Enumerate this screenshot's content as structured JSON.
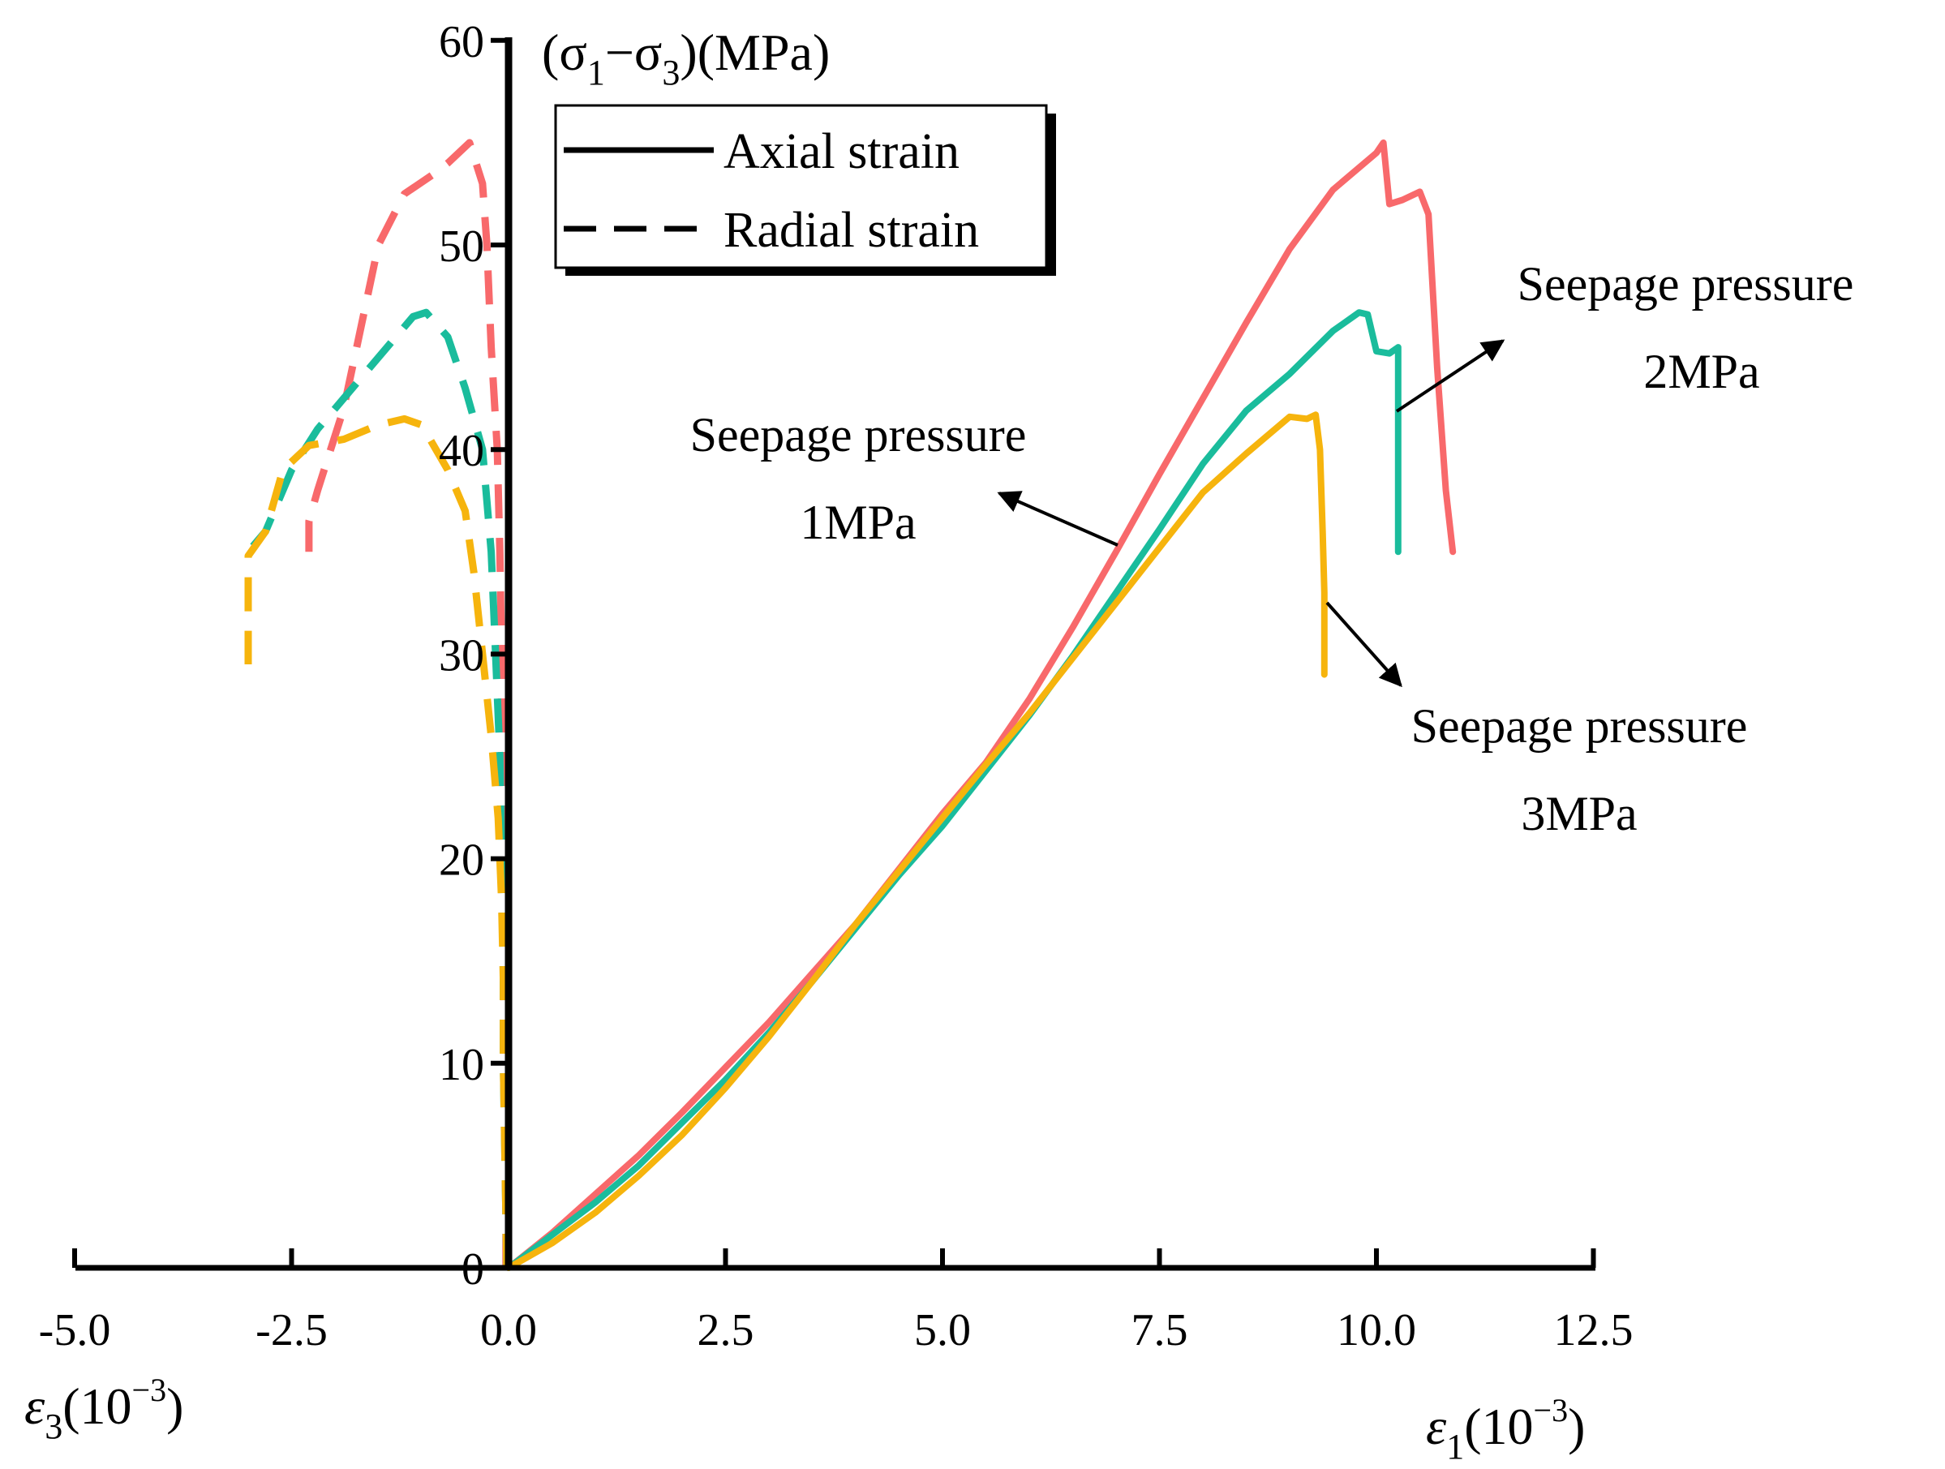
{
  "chart_data": {
    "type": "line",
    "y_axis": {
      "title_main": "(σ",
      "title_sub1": "1",
      "title_mid": "−σ",
      "title_sub2": "3",
      "title_end": ")(MPa)",
      "ylim": [
        0,
        60
      ],
      "ticks": [
        "0",
        "10",
        "20",
        "30",
        "40",
        "50",
        "60"
      ]
    },
    "x_axis": {
      "xlim": [
        -5,
        12.5
      ],
      "ticks": [
        {
          "value": -5.0,
          "label": "-5.0"
        },
        {
          "value": -2.5,
          "label": "-2.5"
        },
        {
          "value": 0.0,
          "label": "0.0"
        },
        {
          "value": 2.5,
          "label": "2.5"
        },
        {
          "value": 5.0,
          "label": "5.0"
        },
        {
          "value": 7.5,
          "label": "7.5"
        },
        {
          "value": 10.0,
          "label": "10.0"
        },
        {
          "value": 12.5,
          "label": "12.5"
        }
      ],
      "left_label_symbol": "ε",
      "left_label_sub": "3",
      "left_label_unit": "(10",
      "left_label_exp": "−3",
      "left_label_close": ")",
      "right_label_symbol": "ε",
      "right_label_sub": "1",
      "right_label_unit": "(10",
      "right_label_exp": "−3",
      "right_label_close": ")"
    },
    "legend": {
      "placement": "top-left",
      "entries": [
        {
          "label": "Axial strain",
          "style": "solid"
        },
        {
          "label": "Radial strain",
          "style": "dashed"
        }
      ]
    },
    "annotations": [
      {
        "line1": "Seepage pressure",
        "line2": "1MPa"
      },
      {
        "line1": "Seepage pressure",
        "line2": "2MPa"
      },
      {
        "line1": "Seepage pressure",
        "line2": "3MPa"
      }
    ],
    "series": [
      {
        "color": "#F8696B",
        "axial": [
          [
            0,
            0
          ],
          [
            0.5,
            1.7
          ],
          [
            1,
            3.6
          ],
          [
            1.5,
            5.5
          ],
          [
            2,
            7.6
          ],
          [
            2.5,
            9.8
          ],
          [
            3,
            12
          ],
          [
            3.5,
            14.4
          ],
          [
            4,
            16.8
          ],
          [
            4.5,
            19.5
          ],
          [
            5,
            22.2
          ],
          [
            5.5,
            24.7
          ],
          [
            6,
            27.8
          ],
          [
            6.5,
            31.3
          ],
          [
            7,
            35
          ],
          [
            7.5,
            38.8
          ],
          [
            8,
            42.5
          ],
          [
            8.5,
            46.2
          ],
          [
            9,
            49.8
          ],
          [
            9.5,
            52.7
          ],
          [
            10,
            54.5
          ],
          [
            10.08,
            55.0
          ],
          [
            10.15,
            52
          ],
          [
            10.3,
            52.2
          ],
          [
            10.5,
            52.6
          ],
          [
            10.6,
            51.5
          ],
          [
            10.7,
            44
          ],
          [
            10.8,
            38
          ],
          [
            10.88,
            35
          ]
        ],
        "radial": [
          [
            -0.03,
            0
          ],
          [
            -0.03,
            5
          ],
          [
            -0.04,
            10
          ],
          [
            -0.06,
            15
          ],
          [
            -0.06,
            20
          ],
          [
            -0.08,
            25
          ],
          [
            -0.08,
            30
          ],
          [
            -0.1,
            35
          ],
          [
            -0.13,
            40
          ],
          [
            -0.2,
            45
          ],
          [
            -0.25,
            50
          ],
          [
            -0.3,
            53
          ],
          [
            -0.45,
            55
          ],
          [
            -0.7,
            54
          ],
          [
            -0.85,
            53.5
          ],
          [
            -1.2,
            52.5
          ],
          [
            -1.5,
            50
          ],
          [
            -1.75,
            45
          ],
          [
            -1.9,
            42
          ],
          [
            -2.2,
            38
          ],
          [
            -2.3,
            36.5
          ],
          [
            -2.3,
            35
          ]
        ]
      },
      {
        "color": "#1ABC9C",
        "axial": [
          [
            0,
            0
          ],
          [
            0.5,
            1.6
          ],
          [
            1,
            3.2
          ],
          [
            1.5,
            5
          ],
          [
            2,
            7.1
          ],
          [
            2.5,
            9.2
          ],
          [
            3,
            11.5
          ],
          [
            3.5,
            14
          ],
          [
            4,
            16.6
          ],
          [
            4.5,
            19.2
          ],
          [
            5,
            21.6
          ],
          [
            5.5,
            24.3
          ],
          [
            6,
            27
          ],
          [
            6.5,
            29.9
          ],
          [
            7,
            33
          ],
          [
            7.5,
            36.1
          ],
          [
            8,
            39.3
          ],
          [
            8.5,
            41.9
          ],
          [
            9,
            43.7
          ],
          [
            9.5,
            45.8
          ],
          [
            9.8,
            46.7
          ],
          [
            9.9,
            46.6
          ],
          [
            10.0,
            44.8
          ],
          [
            10.15,
            44.7
          ],
          [
            10.25,
            45
          ],
          [
            10.25,
            40
          ],
          [
            10.25,
            35
          ]
        ],
        "radial": [
          [
            -0.02,
            0
          ],
          [
            -0.04,
            5
          ],
          [
            -0.06,
            10
          ],
          [
            -0.06,
            15
          ],
          [
            -0.08,
            20
          ],
          [
            -0.1,
            25
          ],
          [
            -0.15,
            30
          ],
          [
            -0.2,
            35
          ],
          [
            -0.3,
            40
          ],
          [
            -0.5,
            43
          ],
          [
            -0.7,
            45.5
          ],
          [
            -0.95,
            46.7
          ],
          [
            -1.1,
            46.5
          ],
          [
            -1.3,
            45.5
          ],
          [
            -1.6,
            44
          ],
          [
            -1.9,
            42.5
          ],
          [
            -2.2,
            41
          ],
          [
            -2.5,
            39
          ],
          [
            -2.8,
            36
          ],
          [
            -3.0,
            35
          ]
        ]
      },
      {
        "color": "#F6B40D",
        "axial": [
          [
            0,
            0
          ],
          [
            0.5,
            1.2
          ],
          [
            1,
            2.7
          ],
          [
            1.5,
            4.5
          ],
          [
            2,
            6.5
          ],
          [
            2.5,
            8.8
          ],
          [
            3,
            11.3
          ],
          [
            3.5,
            14
          ],
          [
            4,
            16.8
          ],
          [
            4.5,
            19.4
          ],
          [
            5,
            22
          ],
          [
            5.5,
            24.6
          ],
          [
            6,
            27.1
          ],
          [
            6.5,
            29.8
          ],
          [
            7,
            32.5
          ],
          [
            7.5,
            35.2
          ],
          [
            8,
            37.9
          ],
          [
            8.5,
            39.8
          ],
          [
            9,
            41.6
          ],
          [
            9.2,
            41.5
          ],
          [
            9.3,
            41.7
          ],
          [
            9.35,
            40
          ],
          [
            9.38,
            36
          ],
          [
            9.4,
            33
          ],
          [
            9.4,
            29
          ]
        ],
        "radial": [
          [
            -0.02,
            0
          ],
          [
            -0.04,
            5
          ],
          [
            -0.06,
            10
          ],
          [
            -0.06,
            14
          ],
          [
            -0.08,
            18
          ],
          [
            -0.12,
            22
          ],
          [
            -0.2,
            26
          ],
          [
            -0.3,
            30
          ],
          [
            -0.4,
            34
          ],
          [
            -0.5,
            37
          ],
          [
            -0.7,
            39
          ],
          [
            -1.0,
            41.2
          ],
          [
            -1.2,
            41.5
          ],
          [
            -1.5,
            41.2
          ],
          [
            -1.9,
            40.5
          ],
          [
            -2.3,
            40.2
          ],
          [
            -2.6,
            39
          ],
          [
            -2.8,
            36
          ],
          [
            -3.0,
            34.8
          ],
          [
            -3.0,
            29.5
          ]
        ]
      }
    ]
  }
}
